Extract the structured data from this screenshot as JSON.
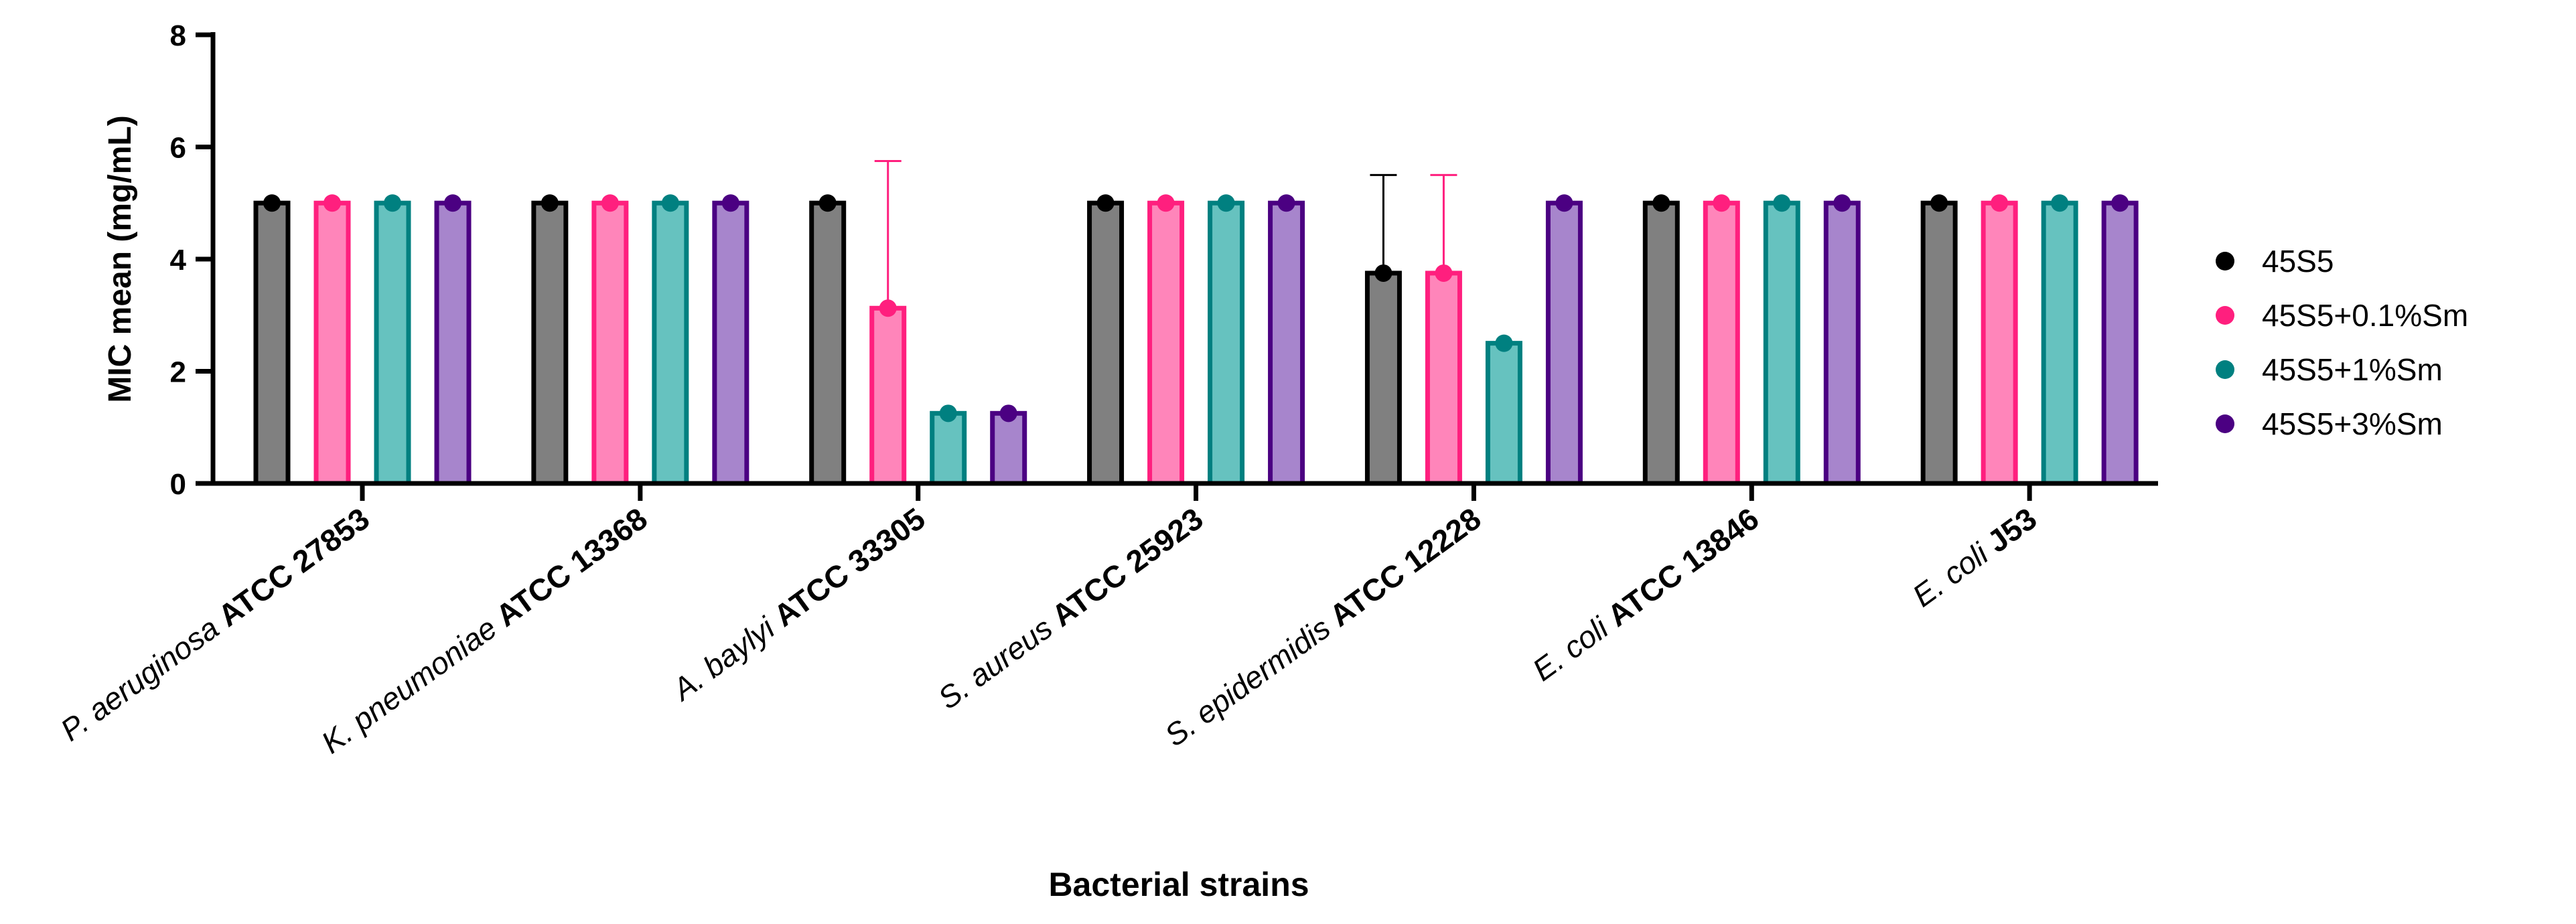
{
  "chart_data": {
    "type": "bar",
    "title": "",
    "xlabel": "Bacterial strains",
    "ylabel": "MIC mean (mg/mL)",
    "ylim": [
      0,
      8
    ],
    "yticks": [
      0,
      2,
      4,
      6,
      8
    ],
    "legend_position": "right",
    "grid": false,
    "categories": [
      {
        "species": "P. aeruginosa",
        "strain": "ATCC 27853"
      },
      {
        "species": "K. pneumoniae",
        "strain": "ATCC 13368"
      },
      {
        "species": "A. baylyi",
        "strain": "ATCC 33305"
      },
      {
        "species": "S. aureus",
        "strain": "ATCC 25923"
      },
      {
        "species": "S. epidermidis",
        "strain": "ATCC 12228"
      },
      {
        "species": "E. coli",
        "strain": "ATCC 13846"
      },
      {
        "species": "E. coli",
        "strain": "J53"
      }
    ],
    "series": [
      {
        "name": "45S5",
        "color": "#000000",
        "fill": "#808080",
        "values": [
          5,
          5,
          5,
          5,
          3.75,
          5,
          5
        ],
        "errors": [
          0,
          0,
          0,
          0,
          1.75,
          0,
          0
        ]
      },
      {
        "name": "45S5+0.1%Sm",
        "color": "#FF1F7E",
        "fill": "#FF85BA",
        "values": [
          5,
          5,
          3.125,
          5,
          3.75,
          5,
          5
        ],
        "errors": [
          0,
          0,
          2.625,
          0,
          1.75,
          0,
          0
        ]
      },
      {
        "name": "45S5+1%Sm",
        "color": "#008080",
        "fill": "#66C2BF",
        "values": [
          5,
          5,
          1.25,
          5,
          2.5,
          5,
          5
        ],
        "errors": [
          0,
          0,
          0,
          0,
          0,
          0,
          0
        ]
      },
      {
        "name": "45S5+3%Sm",
        "color": "#4B0082",
        "fill": "#A785CC",
        "values": [
          5,
          5,
          1.25,
          5,
          5,
          5,
          5
        ],
        "errors": [
          0,
          0,
          0,
          0,
          0,
          0,
          0
        ]
      }
    ]
  }
}
